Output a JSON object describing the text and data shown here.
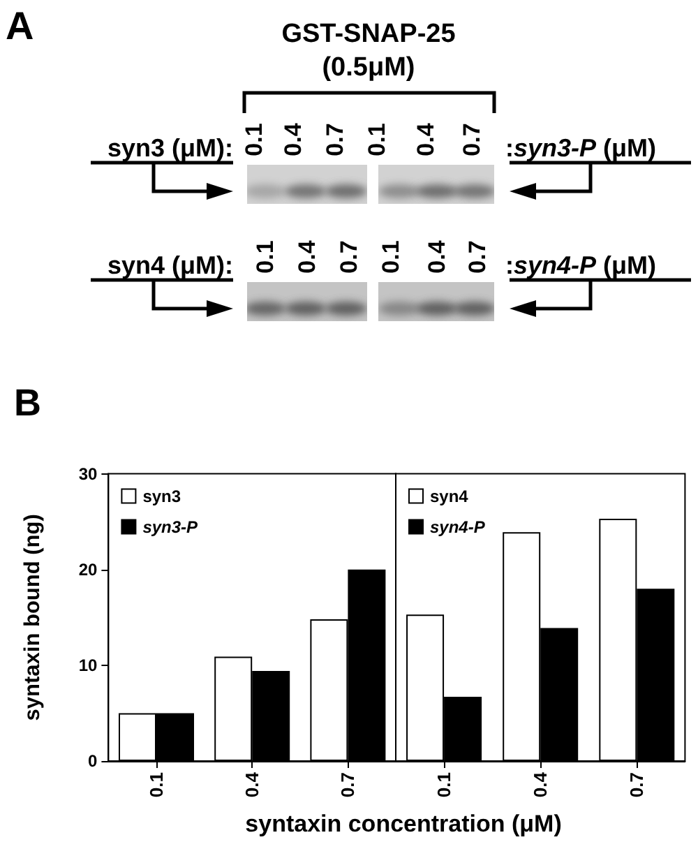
{
  "chart_data": [
    {
      "type": "other",
      "title": "A",
      "annotations": [
        "GST-SNAP-25",
        "(0.5μM)"
      ],
      "categories": [
        "0.1",
        "0.4",
        "0.7",
        "0.1",
        "0.4",
        "0.7"
      ],
      "y_categories": [
        "syn3 (μM):",
        "syn4 (μM):"
      ],
      "y2_categories": [
        ":syn3-P (μM)",
        ":syn4-P (μM)"
      ]
    },
    {
      "type": "bar",
      "title": "B",
      "xlabel": "syntaxin concentration (μM)",
      "ylabel": "syntaxin bound (ng)",
      "categories": [
        "0.1",
        "0.4",
        "0.7"
      ],
      "series": [
        {
          "name": "syn3",
          "color": "#ffffff",
          "values": [
            5,
            10.9,
            14.8
          ]
        },
        {
          "name": "syn3-P",
          "color": "#000000",
          "values": [
            5,
            9.4,
            20
          ]
        }
      ],
      "ylim": [
        0,
        30
      ],
      "yticks": [
        0,
        10,
        20,
        30
      ],
      "legend": "top left"
    },
    {
      "type": "bar",
      "categories": [
        "0.1",
        "0.4",
        "0.7"
      ],
      "series": [
        {
          "name": "syn4",
          "color": "#ffffff",
          "values": [
            15.3,
            23.9,
            25.3
          ]
        },
        {
          "name": "syn4-P",
          "color": "#000000",
          "values": [
            6.7,
            13.9,
            18
          ]
        }
      ],
      "ylim": [
        0,
        30
      ],
      "tick_labels": "x",
      "legend": "top left"
    }
  ]
}
